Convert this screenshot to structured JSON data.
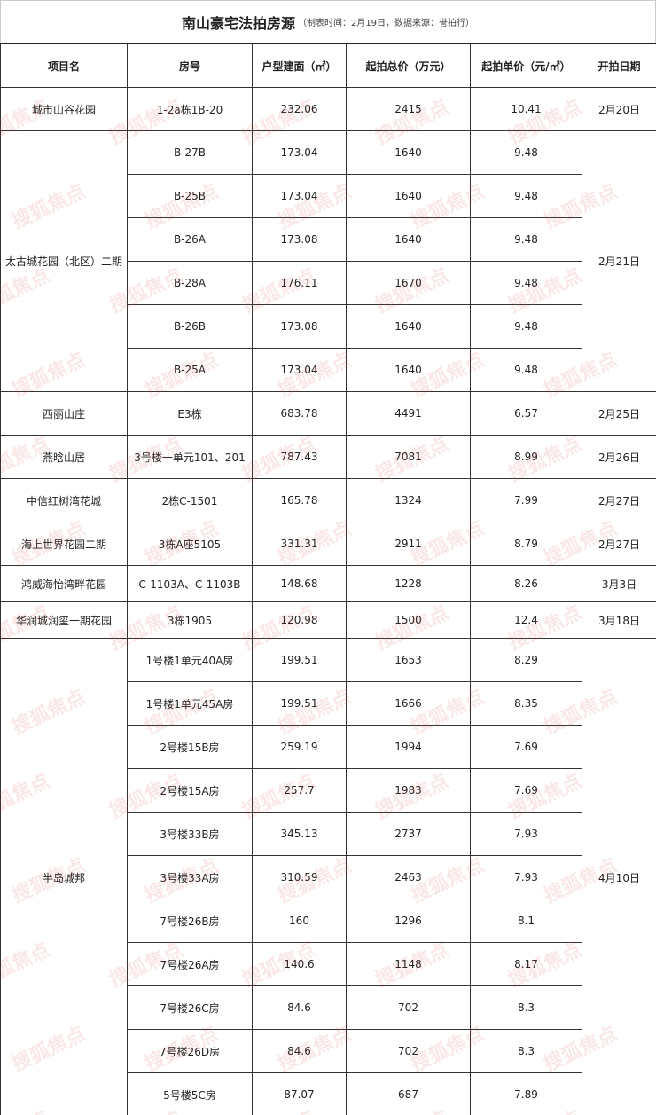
{
  "title": "南山豪宅法拍房源",
  "subtitle": "（制表时间：2月19日，数据来源：誉拍行）",
  "watermark": "搜狐焦点",
  "columns": [
    "项目名",
    "房号",
    "户型建面（㎡）",
    "起拍总价（万元）",
    "起拍单价（元/㎡）",
    "开拍日期"
  ],
  "groups": [
    {
      "project": "城市山谷花园",
      "date": "2月20日",
      "units": [
        [
          "1-2a栋1B-20",
          "232.06",
          "2415",
          "10.41"
        ]
      ]
    },
    {
      "project": "太古城花园（北区）二期",
      "date": "2月21日",
      "units": [
        [
          "B-27B",
          "173.04",
          "1640",
          "9.48"
        ],
        [
          "B-25B",
          "173.04",
          "1640",
          "9.48"
        ],
        [
          "B-26A",
          "173.08",
          "1640",
          "9.48"
        ],
        [
          "B-28A",
          "176.11",
          "1670",
          "9.48"
        ],
        [
          "B-26B",
          "173.08",
          "1640",
          "9.48"
        ],
        [
          "B-25A",
          "173.04",
          "1640",
          "9.48"
        ]
      ]
    },
    {
      "project": "西丽山庄",
      "date": "2月25日",
      "units": [
        [
          "E3栋",
          "683.78",
          "4491",
          "6.57"
        ]
      ]
    },
    {
      "project": "燕晗山居",
      "date": "2月26日",
      "units": [
        [
          "3号楼一单元101、201",
          "787.43",
          "7081",
          "8.99"
        ]
      ]
    },
    {
      "project": "中信红树湾花城",
      "date": "2月27日",
      "units": [
        [
          "2栋C-1501",
          "165.78",
          "1324",
          "7.99"
        ]
      ]
    },
    {
      "project": "海上世界花园二期",
      "date": "2月27日",
      "units": [
        [
          "3栋A座5105",
          "331.31",
          "2911",
          "8.79"
        ]
      ]
    },
    {
      "project": "鸿威海怡湾畔花园",
      "date": "3月3日",
      "short": true,
      "units": [
        [
          "C-1103A、C-1103B",
          "148.68",
          "1228",
          "8.26"
        ]
      ]
    },
    {
      "project": "华润城润玺一期花园",
      "date": "3月18日",
      "short": true,
      "units": [
        [
          "3栋1905",
          "120.98",
          "1500",
          "12.4"
        ]
      ]
    },
    {
      "project": "半岛城邦",
      "date": "4月10日",
      "units": [
        [
          "1号楼1单元40A房",
          "199.51",
          "1653",
          "8.29"
        ],
        [
          "1号楼1单元45A房",
          "199.51",
          "1666",
          "8.35"
        ],
        [
          "2号楼15B房",
          "259.19",
          "1994",
          "7.69"
        ],
        [
          "2号楼15A房",
          "257.7",
          "1983",
          "7.69"
        ],
        [
          "3号楼33B房",
          "345.13",
          "2737",
          "7.93"
        ],
        [
          "3号楼33A房",
          "310.59",
          "2463",
          "7.93"
        ],
        [
          "7号楼26B房",
          "160",
          "1296",
          "8.1"
        ],
        [
          "7号楼26A房",
          "140.6",
          "1148",
          "8.17"
        ],
        [
          "7号楼26C房",
          "84.6",
          "702",
          "8.3"
        ],
        [
          "7号楼26D房",
          "84.6",
          "702",
          "8.3"
        ],
        [
          "5号楼5C房",
          "87.07",
          "687",
          "7.89"
        ]
      ]
    }
  ]
}
